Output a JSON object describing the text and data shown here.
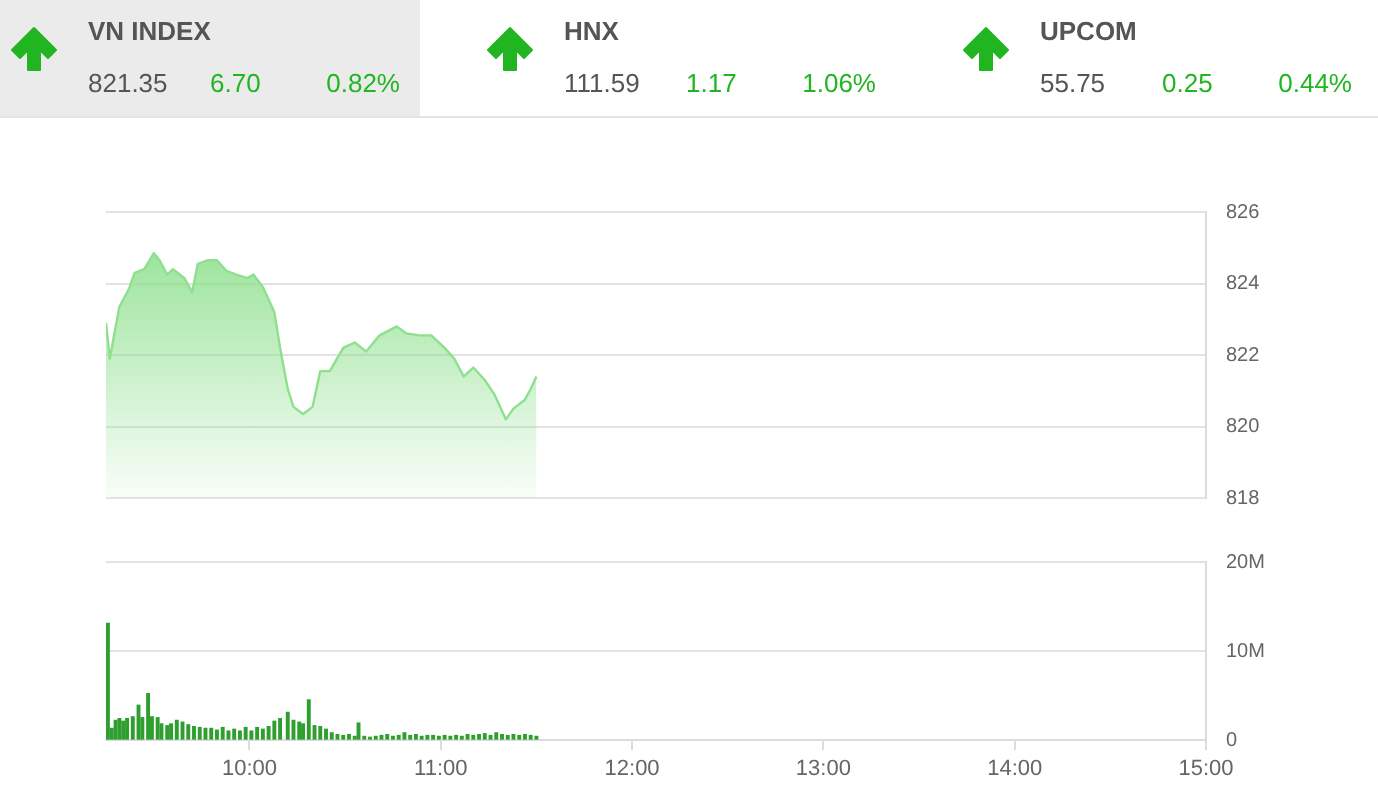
{
  "chart_data": [
    {
      "type": "other",
      "annotations": [
        "VN INDEX",
        "821.35",
        "6.70",
        "0.82%",
        "HNX",
        "111.59",
        "1.17",
        "1.06%",
        "UPCOM",
        "55.75",
        "0.25",
        "0.44%"
      ]
    },
    {
      "type": "area",
      "tick_labels": "y",
      "grid": "y",
      "legend": false,
      "xlim": [
        9.25,
        15
      ],
      "ylim": [
        818,
        826
      ],
      "yticks": [
        818,
        820,
        822,
        824,
        826
      ],
      "series": [
        {
          "color": "#8ee08e",
          "x": [
            9.25,
            9.27,
            9.32,
            9.37,
            9.4,
            9.45,
            9.5,
            9.53,
            9.57,
            9.6,
            9.66,
            9.7,
            9.73,
            9.78,
            9.83,
            9.88,
            9.93,
            9.99,
            10.02,
            10.07,
            10.13,
            10.16,
            10.2,
            10.23,
            10.28,
            10.33,
            10.37,
            10.42,
            10.49,
            10.55,
            10.61,
            10.68,
            10.77,
            10.82,
            10.89,
            10.95,
            11.02,
            11.07,
            11.12,
            11.17,
            11.23,
            11.28,
            11.34,
            11.38,
            11.44,
            11.47,
            11.5
          ],
          "values": [
            822.9,
            821.9,
            823.35,
            823.85,
            824.3,
            824.4,
            824.85,
            824.65,
            824.25,
            824.4,
            824.15,
            823.75,
            824.55,
            824.65,
            824.65,
            824.35,
            824.25,
            824.15,
            824.25,
            823.9,
            823.2,
            822.2,
            821.05,
            820.55,
            820.35,
            820.55,
            821.55,
            821.55,
            822.2,
            822.35,
            822.1,
            822.55,
            822.8,
            822.6,
            822.55,
            822.55,
            822.2,
            821.9,
            821.4,
            821.65,
            821.3,
            820.9,
            820.2,
            820.5,
            820.75,
            821.05,
            821.4
          ]
        }
      ]
    },
    {
      "type": "bar",
      "grid": "y",
      "legend": false,
      "xlim": [
        9.25,
        15
      ],
      "xticks": [
        {
          "value": 10,
          "label": "10:00"
        },
        {
          "value": 11,
          "label": "11:00"
        },
        {
          "value": 12,
          "label": "12:00"
        },
        {
          "value": 13,
          "label": "13:00"
        },
        {
          "value": 14,
          "label": "14:00"
        },
        {
          "value": 15,
          "label": "15:00"
        }
      ],
      "ylim": [
        0,
        20
      ],
      "yticks": [
        {
          "value": 0,
          "label": "0"
        },
        {
          "value": 10,
          "label": "10M"
        },
        {
          "value": 20,
          "label": "20M"
        }
      ],
      "series": [
        {
          "color": "#2e9e2e",
          "x": [
            9.26,
            9.28,
            9.3,
            9.32,
            9.34,
            9.36,
            9.39,
            9.42,
            9.44,
            9.47,
            9.49,
            9.52,
            9.54,
            9.57,
            9.59,
            9.62,
            9.65,
            9.68,
            9.71,
            9.74,
            9.77,
            9.8,
            9.83,
            9.86,
            9.89,
            9.92,
            9.95,
            9.98,
            10.01,
            10.04,
            10.07,
            10.1,
            10.13,
            10.16,
            10.2,
            10.23,
            10.26,
            10.28,
            10.31,
            10.34,
            10.37,
            10.4,
            10.43,
            10.46,
            10.49,
            10.52,
            10.55,
            10.57,
            10.6,
            10.63,
            10.66,
            10.69,
            10.72,
            10.75,
            10.78,
            10.81,
            10.84,
            10.87,
            10.9,
            10.93,
            10.96,
            10.99,
            11.02,
            11.05,
            11.08,
            11.11,
            11.14,
            11.17,
            11.2,
            11.23,
            11.26,
            11.29,
            11.32,
            11.35,
            11.38,
            11.41,
            11.44,
            11.47,
            11.5
          ],
          "values": [
            13.1,
            1.3,
            2.2,
            2.4,
            2.1,
            2.4,
            2.6,
            3.9,
            2.5,
            5.2,
            2.6,
            2.5,
            1.8,
            1.6,
            1.8,
            2.2,
            2.0,
            1.7,
            1.5,
            1.4,
            1.3,
            1.3,
            1.1,
            1.4,
            1.0,
            1.2,
            1.0,
            1.4,
            1.0,
            1.4,
            1.2,
            1.5,
            2.1,
            2.4,
            3.1,
            2.2,
            2.0,
            1.8,
            4.5,
            1.6,
            1.5,
            1.2,
            0.8,
            0.6,
            0.5,
            0.6,
            0.4,
            1.9,
            0.4,
            0.3,
            0.4,
            0.5,
            0.6,
            0.4,
            0.5,
            0.8,
            0.5,
            0.6,
            0.4,
            0.5,
            0.5,
            0.4,
            0.5,
            0.4,
            0.5,
            0.4,
            0.6,
            0.5,
            0.6,
            0.7,
            0.5,
            0.8,
            0.6,
            0.5,
            0.6,
            0.5,
            0.6,
            0.5,
            0.4
          ]
        }
      ]
    }
  ]
}
